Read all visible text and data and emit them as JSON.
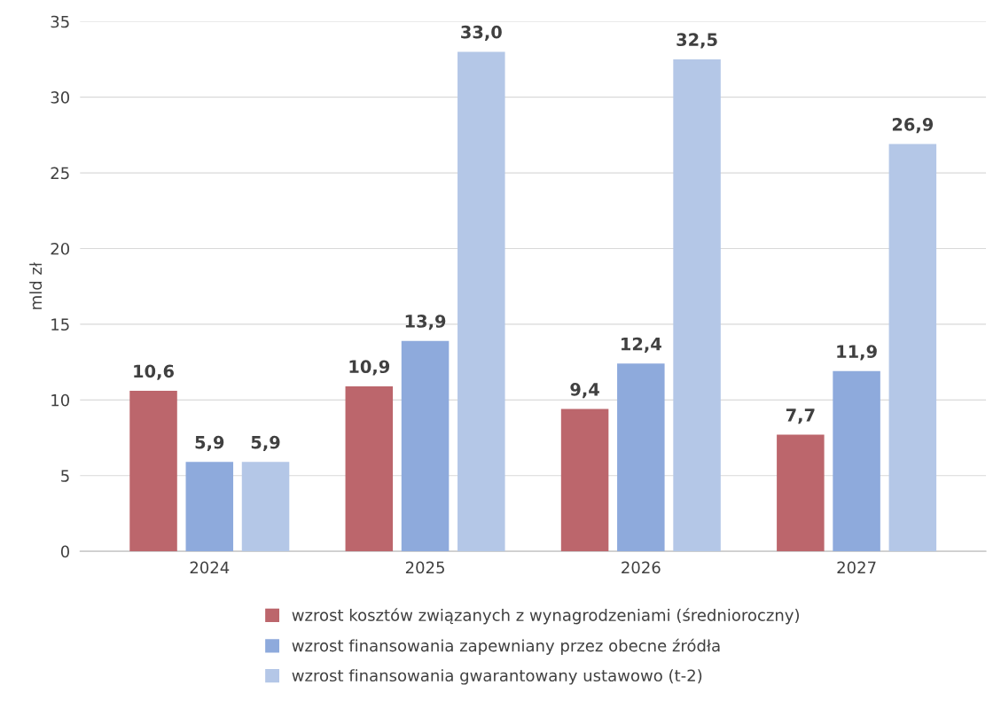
{
  "chart_data": {
    "type": "bar",
    "ylabel": "mld zł",
    "categories": [
      "2024",
      "2025",
      "2026",
      "2027"
    ],
    "series": [
      {
        "name": "wzrost kosztów związanych z wynagrodzeniami (średnioroczny)",
        "color": "#bc666c",
        "values": [
          10.6,
          10.9,
          9.4,
          7.7
        ],
        "value_labels": [
          "10,6",
          "10,9",
          "9,4",
          "7,7"
        ]
      },
      {
        "name": "wzrost finansowania zapewniany przez obecne źródła",
        "color": "#8eaadc",
        "values": [
          5.9,
          13.9,
          12.4,
          11.9
        ],
        "value_labels": [
          "5,9",
          "13,9",
          "12,4",
          "11,9"
        ]
      },
      {
        "name": "wzrost finansowania gwarantowany ustawowo (t-2)",
        "color": "#b4c7e7",
        "values": [
          5.9,
          33.0,
          32.5,
          26.9
        ],
        "value_labels": [
          "5,9",
          "33,0",
          "32,5",
          "26,9"
        ]
      }
    ],
    "ylim": [
      0,
      35
    ],
    "yticks": [
      0,
      5,
      10,
      15,
      20,
      25,
      30,
      35
    ],
    "grid": "y",
    "legend": "bottom"
  }
}
